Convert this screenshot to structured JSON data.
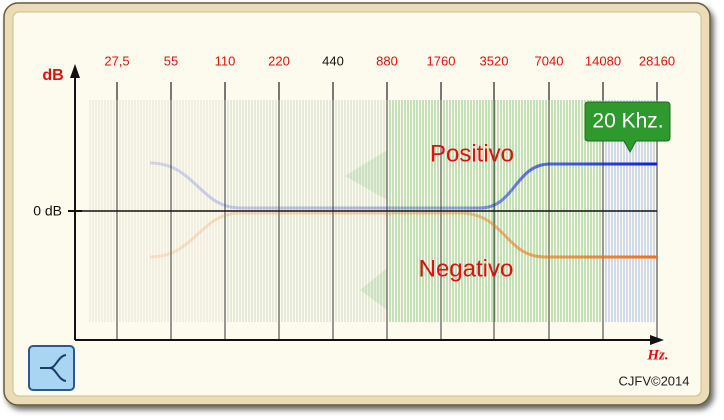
{
  "axis": {
    "y_label": "dB",
    "zero_label": "0 dB",
    "x_label": "Hz.",
    "frequencies": [
      "27,5",
      "55",
      "110",
      "220",
      "440",
      "880",
      "1760",
      "3520",
      "7040",
      "14080",
      "28160"
    ]
  },
  "annotations": {
    "positive": "Positivo",
    "negative": "Negativo",
    "callout": "20 Khz."
  },
  "credit": "CJFV©2014"
}
